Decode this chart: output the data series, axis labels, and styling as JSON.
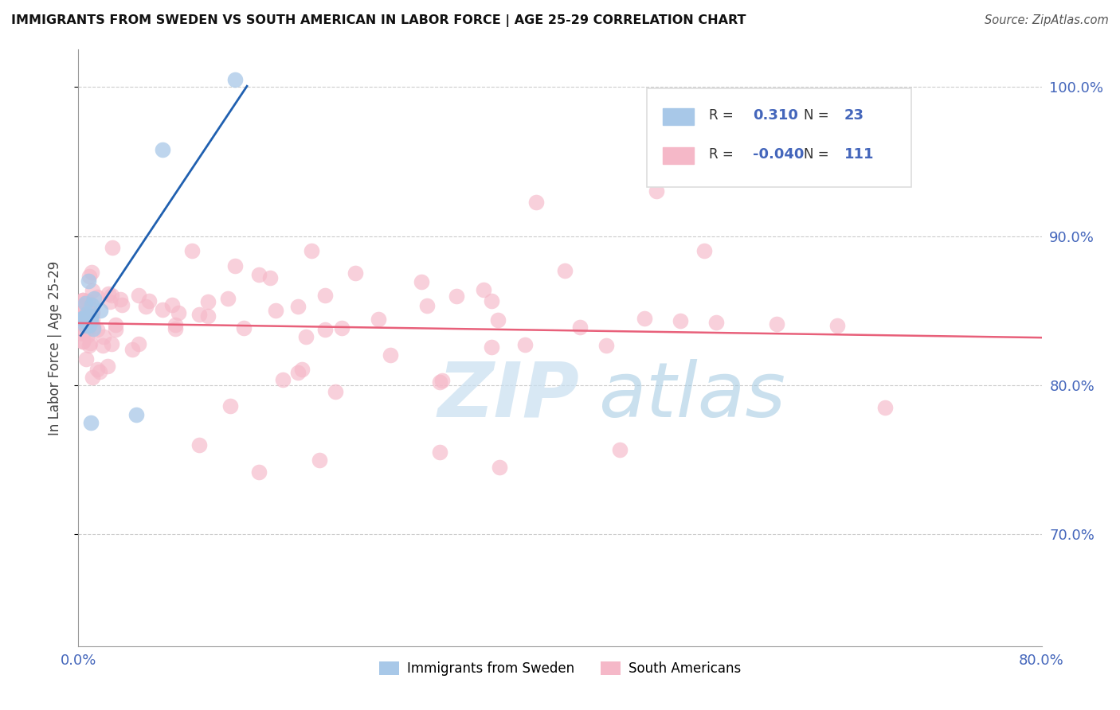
{
  "title": "IMMIGRANTS FROM SWEDEN VS SOUTH AMERICAN IN LABOR FORCE | AGE 25-29 CORRELATION CHART",
  "source_text": "Source: ZipAtlas.com",
  "ylabel": "In Labor Force | Age 25-29",
  "xlim": [
    0.0,
    0.8
  ],
  "ylim": [
    0.625,
    1.025
  ],
  "xticks": [
    0.0,
    0.8
  ],
  "xticklabels": [
    "0.0%",
    "80.0%"
  ],
  "yticks": [
    0.7,
    0.8,
    0.9,
    1.0
  ],
  "yticklabels_right": [
    "70.0%",
    "80.0%",
    "90.0%",
    "100.0%"
  ],
  "legend_labels": [
    "Immigrants from Sweden",
    "South Americans"
  ],
  "r_sweden": 0.31,
  "n_sweden": 23,
  "r_south_american": -0.04,
  "n_south_american": 111,
  "sweden_color": "#a8c8e8",
  "south_american_color": "#f5b8c8",
  "sweden_line_color": "#2060b0",
  "south_american_line_color": "#e8607a",
  "background_color": "#ffffff",
  "watermark_zip_color": "#c8dff0",
  "watermark_atlas_color": "#a0c8e0",
  "grid_color": "#cccccc",
  "tick_label_color": "#4466bb",
  "title_color": "#111111",
  "ylabel_color": "#444444",
  "legend_box_color": "#dddddd"
}
